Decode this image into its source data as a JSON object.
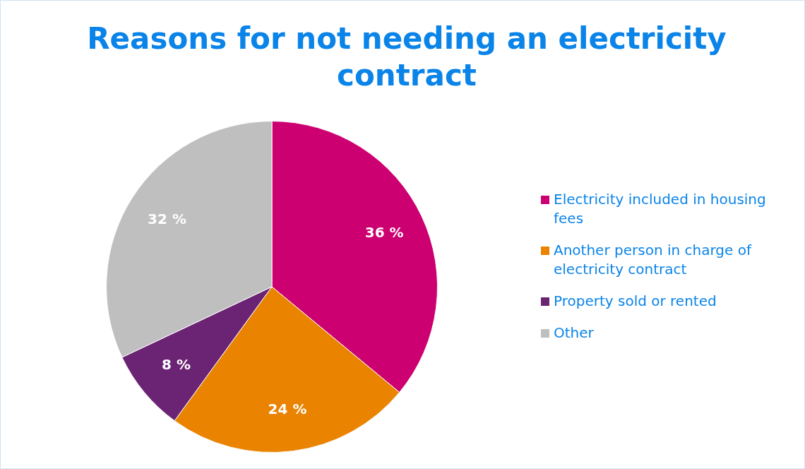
{
  "chart_data": {
    "type": "pie",
    "title": "Reasons for not needing an electricity contract",
    "categories": [
      "Electricity included in housing fees",
      "Another person in charge of electricity contract",
      "Property sold or rented",
      "Other"
    ],
    "values": [
      36,
      24,
      8,
      32
    ],
    "colors": [
      "#cc0070",
      "#e98300",
      "#6b2473",
      "#bfbfbf"
    ],
    "value_labels": [
      "36 %",
      "24 %",
      "8 %",
      "32 %"
    ],
    "legend": "right"
  }
}
